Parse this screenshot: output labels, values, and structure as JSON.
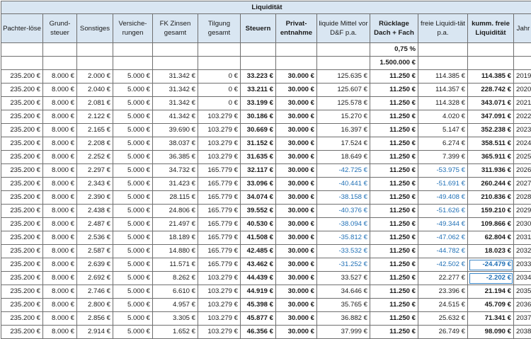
{
  "title": "Liquidität",
  "columns": [
    "Pachter-löse",
    "Grund-steuer",
    "Sonstiges",
    "Versiche-rungen",
    "FK Zinsen gesamt",
    "Tilgung gesamt",
    "Steuern",
    "Privat-entnahme",
    "liquide Mittel vor D&F p.a.",
    "Rücklage Dach + Fach",
    "freie Liquidi-tät p.a.",
    "kumm. freie Liquidität",
    "Jahr"
  ],
  "rate_row": {
    "value": "0,75 %"
  },
  "amount_row": {
    "value": "1.500.000 €"
  },
  "rows": [
    [
      "235.200 €",
      "8.000 €",
      "2.000 €",
      "5.000 €",
      "31.342 €",
      "0 €",
      "33.223 €",
      "30.000 €",
      "125.635 €",
      "11.250 €",
      "114.385 €",
      "114.385 €",
      "2019"
    ],
    [
      "235.200 €",
      "8.000 €",
      "2.040 €",
      "5.000 €",
      "31.342 €",
      "0 €",
      "33.211 €",
      "30.000 €",
      "125.607 €",
      "11.250 €",
      "114.357 €",
      "228.742 €",
      "2020"
    ],
    [
      "235.200 €",
      "8.000 €",
      "2.081 €",
      "5.000 €",
      "31.342 €",
      "0 €",
      "33.199 €",
      "30.000 €",
      "125.578 €",
      "11.250 €",
      "114.328 €",
      "343.071 €",
      "2021"
    ],
    [
      "235.200 €",
      "8.000 €",
      "2.122 €",
      "5.000 €",
      "41.342 €",
      "103.279 €",
      "30.186 €",
      "30.000 €",
      "15.270 €",
      "11.250 €",
      "4.020 €",
      "347.091 €",
      "2022"
    ],
    [
      "235.200 €",
      "8.000 €",
      "2.165 €",
      "5.000 €",
      "39.690 €",
      "103.279 €",
      "30.669 €",
      "30.000 €",
      "16.397 €",
      "11.250 €",
      "5.147 €",
      "352.238 €",
      "2023"
    ],
    [
      "235.200 €",
      "8.000 €",
      "2.208 €",
      "5.000 €",
      "38.037 €",
      "103.279 €",
      "31.152 €",
      "30.000 €",
      "17.524 €",
      "11.250 €",
      "6.274 €",
      "358.511 €",
      "2024"
    ],
    [
      "235.200 €",
      "8.000 €",
      "2.252 €",
      "5.000 €",
      "36.385 €",
      "103.279 €",
      "31.635 €",
      "30.000 €",
      "18.649 €",
      "11.250 €",
      "7.399 €",
      "365.911 €",
      "2025"
    ],
    [
      "235.200 €",
      "8.000 €",
      "2.297 €",
      "5.000 €",
      "34.732 €",
      "165.779 €",
      "32.117 €",
      "30.000 €",
      "-42.725 €",
      "11.250 €",
      "-53.975 €",
      "311.936 €",
      "2026"
    ],
    [
      "235.200 €",
      "8.000 €",
      "2.343 €",
      "5.000 €",
      "31.423 €",
      "165.779 €",
      "33.096 €",
      "30.000 €",
      "-40.441 €",
      "11.250 €",
      "-51.691 €",
      "260.244 €",
      "2027"
    ],
    [
      "235.200 €",
      "8.000 €",
      "2.390 €",
      "5.000 €",
      "28.115 €",
      "165.779 €",
      "34.074 €",
      "30.000 €",
      "-38.158 €",
      "11.250 €",
      "-49.408 €",
      "210.836 €",
      "2028"
    ],
    [
      "235.200 €",
      "8.000 €",
      "2.438 €",
      "5.000 €",
      "24.806 €",
      "165.779 €",
      "39.552 €",
      "30.000 €",
      "-40.376 €",
      "11.250 €",
      "-51.626 €",
      "159.210 €",
      "2029"
    ],
    [
      "235.200 €",
      "8.000 €",
      "2.487 €",
      "5.000 €",
      "21.497 €",
      "165.779 €",
      "40.530 €",
      "30.000 €",
      "-38.094 €",
      "11.250 €",
      "-49.344 €",
      "109.866 €",
      "2030"
    ],
    [
      "235.200 €",
      "8.000 €",
      "2.536 €",
      "5.000 €",
      "18.189 €",
      "165.779 €",
      "41.508 €",
      "30.000 €",
      "-35.812 €",
      "11.250 €",
      "-47.062 €",
      "62.804 €",
      "2031"
    ],
    [
      "235.200 €",
      "8.000 €",
      "2.587 €",
      "5.000 €",
      "14.880 €",
      "165.779 €",
      "42.485 €",
      "30.000 €",
      "-33.532 €",
      "11.250 €",
      "-44.782 €",
      "18.023 €",
      "2032"
    ],
    [
      "235.200 €",
      "8.000 €",
      "2.639 €",
      "5.000 €",
      "11.571 €",
      "165.779 €",
      "43.462 €",
      "30.000 €",
      "-31.252 €",
      "11.250 €",
      "-42.502 €",
      "-24.479 €",
      "2033"
    ],
    [
      "235.200 €",
      "8.000 €",
      "2.692 €",
      "5.000 €",
      "8.262 €",
      "103.279 €",
      "44.439 €",
      "30.000 €",
      "33.527 €",
      "11.250 €",
      "22.277 €",
      "-2.202 €",
      "2034"
    ],
    [
      "235.200 €",
      "8.000 €",
      "2.746 €",
      "5.000 €",
      "6.610 €",
      "103.279 €",
      "44.919 €",
      "30.000 €",
      "34.646 €",
      "11.250 €",
      "23.396 €",
      "21.194 €",
      "2035"
    ],
    [
      "235.200 €",
      "8.000 €",
      "2.800 €",
      "5.000 €",
      "4.957 €",
      "103.279 €",
      "45.398 €",
      "30.000 €",
      "35.765 €",
      "11.250 €",
      "24.515 €",
      "45.709 €",
      "2036"
    ],
    [
      "235.200 €",
      "8.000 €",
      "2.856 €",
      "5.000 €",
      "3.305 €",
      "103.279 €",
      "45.877 €",
      "30.000 €",
      "36.882 €",
      "11.250 €",
      "25.632 €",
      "71.341 €",
      "2037"
    ],
    [
      "235.200 €",
      "8.000 €",
      "2.914 €",
      "5.000 €",
      "1.652 €",
      "103.279 €",
      "46.356 €",
      "30.000 €",
      "37.999 €",
      "11.250 €",
      "26.749 €",
      "98.090 €",
      "2038"
    ]
  ],
  "colors": {
    "header_bg": "#d9e6f2",
    "negative": "#1f6fb5",
    "border": "#6f6f6f"
  }
}
